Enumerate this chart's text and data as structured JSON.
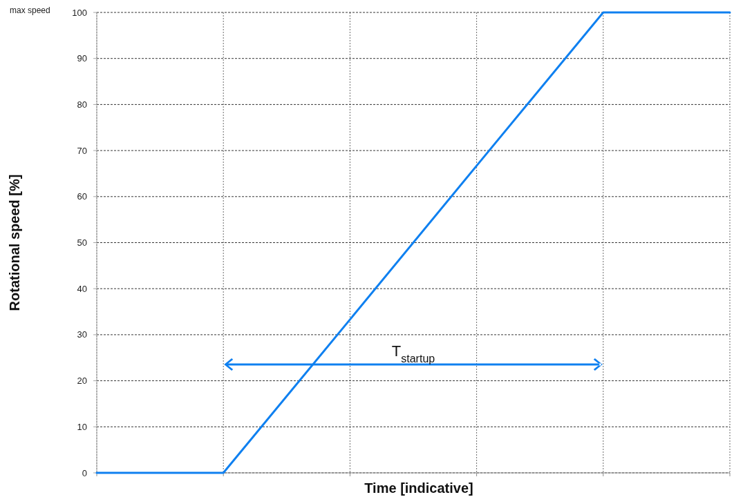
{
  "chart_data": {
    "type": "line",
    "xlabel": "Time [indicative]",
    "ylabel": "Rotational speed [%]",
    "categories": [
      null,
      null,
      null,
      null,
      null,
      null
    ],
    "values": [
      0,
      0,
      33.3,
      66.7,
      100,
      100
    ],
    "color": "#0f80f0",
    "ylim": [
      0,
      100
    ],
    "yticks": [
      0,
      10,
      20,
      30,
      40,
      50,
      60,
      70,
      80,
      90,
      100
    ],
    "grid": true,
    "tick_labels": "y",
    "annotations": [
      "max speed",
      "T$_{startup}$"
    ]
  }
}
